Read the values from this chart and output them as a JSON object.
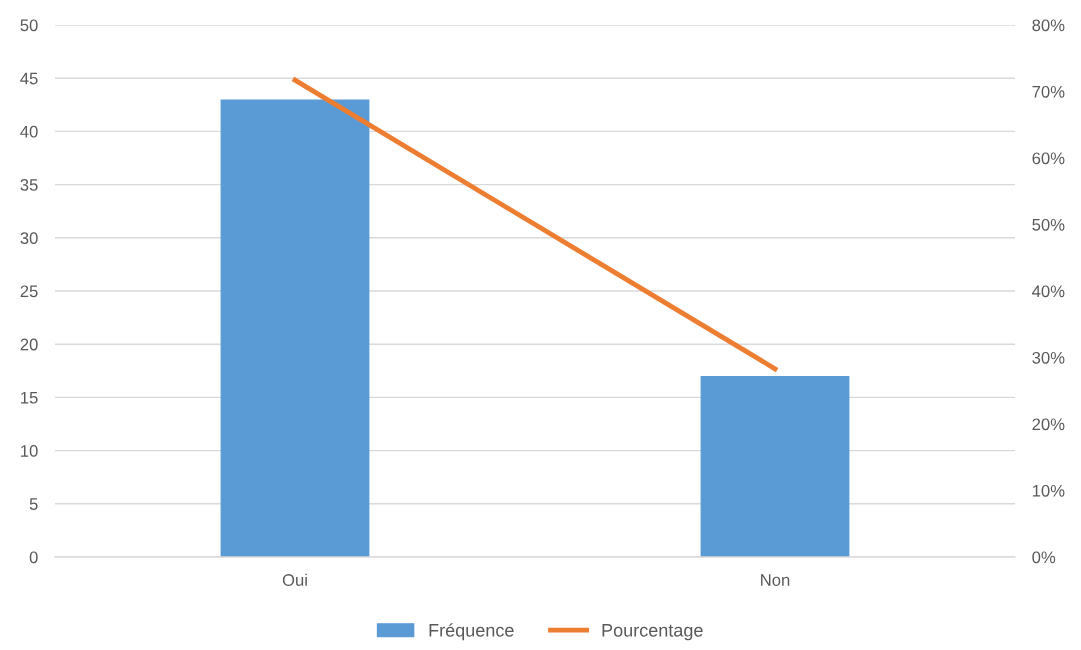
{
  "chart_data": {
    "type": "bar",
    "categories": [
      "Oui",
      "Non"
    ],
    "series": [
      {
        "name": "Fréquence",
        "color": "#5b9bd5",
        "values": [
          43,
          17
        ]
      },
      {
        "name": "Pourcentage",
        "type": "line",
        "axis": "y2",
        "color": "#ed7d31",
        "values": [
          71.7,
          28.3
        ]
      }
    ],
    "ylim": [
      0,
      50
    ],
    "yticks": [
      0,
      5,
      10,
      15,
      20,
      25,
      30,
      35,
      40,
      45,
      50
    ],
    "y2lim": [
      0,
      80
    ],
    "y2ticks": [
      {
        "value": 0,
        "label": "0%"
      },
      {
        "value": 10,
        "label": "10%"
      },
      {
        "value": 20,
        "label": "20%"
      },
      {
        "value": 30,
        "label": "30%"
      },
      {
        "value": 40,
        "label": "40%"
      },
      {
        "value": 50,
        "label": "50%"
      },
      {
        "value": 60,
        "label": "60%"
      },
      {
        "value": 70,
        "label": "70%"
      },
      {
        "value": 80,
        "label": "80%"
      }
    ],
    "grid": "y",
    "legend": "bottom",
    "marker": "none",
    "line_style": "solid"
  }
}
